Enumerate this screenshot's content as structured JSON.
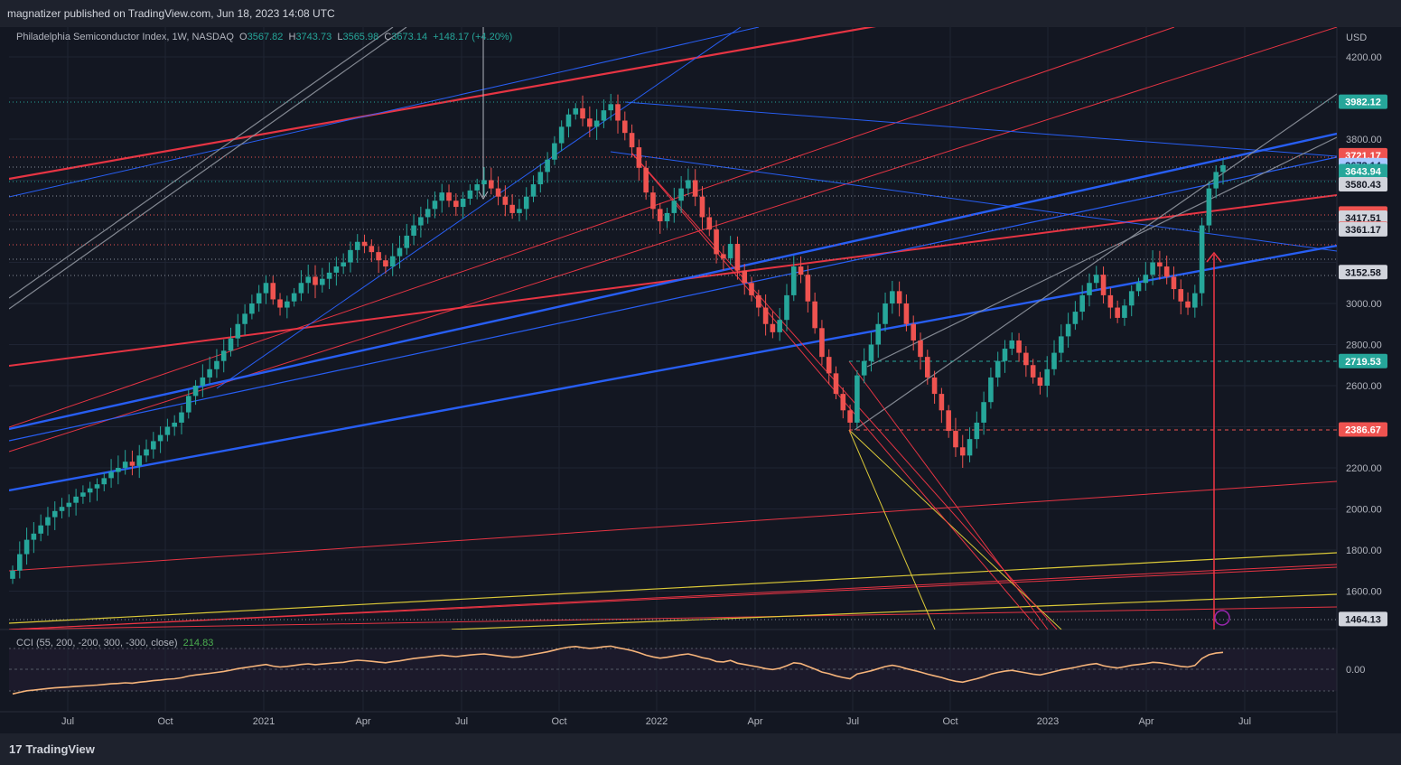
{
  "header": {
    "publisher_line": "magnatizer published on TradingView.com, Jun 18, 2023 14:08 UTC"
  },
  "legend": {
    "symbol": "Philadelphia Semiconductor Index, 1W, NASDAQ",
    "o_label": "O",
    "o": "3567.82",
    "h_label": "H",
    "h": "3743.73",
    "l_label": "L",
    "l": "3565.98",
    "c_label": "C",
    "c": "3673.14",
    "change": "+148.17 (+4.20%)"
  },
  "cci_legend": {
    "label": "CCI (55, 200, -200, 300, -300, close)",
    "value": "214.83"
  },
  "footer": {
    "brand": "TradingView"
  },
  "colors": {
    "background": "#131722",
    "grid": "#1f2433",
    "up": "#26a69a",
    "down": "#ef5350",
    "blue_line": "#2962ff",
    "red_line": "#f23645",
    "yellow_line": "#e6d33a",
    "cci_line": "#f5b37a"
  },
  "chart_data": {
    "type": "candlestick",
    "symbol": "Philadelphia Semiconductor Index",
    "interval": "1W",
    "currency_label": "USD",
    "y_ticks": [
      1600,
      1800,
      2000,
      2200,
      2400,
      2600,
      2800,
      3000,
      3200,
      3400,
      3600,
      3800,
      4000,
      4200
    ],
    "y_tick_labels": [
      "1600.00",
      "1800.00",
      "2000.00",
      "2200.00",
      "",
      "2600.00",
      "2800.00",
      "3000.00",
      "",
      "",
      "",
      "3800.00",
      "",
      "4200.00"
    ],
    "x_tick_labels": [
      "Jul",
      "Oct",
      "2021",
      "Apr",
      "Jul",
      "Oct",
      "2022",
      "Apr",
      "Jul",
      "Oct",
      "2023",
      "Apr",
      "Jul"
    ],
    "price_markers": [
      {
        "value": "3982.12",
        "bg": "#26a69a",
        "fg": "#ffffff"
      },
      {
        "value": "3721.17",
        "bg": "#ef5350",
        "fg": "#ffffff"
      },
      {
        "value": "3673.14",
        "bg": "#a8c7ff",
        "fg": "#0b1f4a"
      },
      {
        "value": "3643.94",
        "bg": "#26a69a",
        "fg": "#ffffff"
      },
      {
        "value": "3580.43",
        "bg": "#d1d4dc",
        "fg": "#131722"
      },
      {
        "value": "3437.89",
        "bg": "#ef5350",
        "fg": "#ffffff"
      },
      {
        "value": "3417.51",
        "bg": "#d1d4dc",
        "fg": "#131722"
      },
      {
        "value": "3363.62",
        "bg": "#ef5350",
        "fg": "#ffffff"
      },
      {
        "value": "3361.17",
        "bg": "#d1d4dc",
        "fg": "#131722"
      },
      {
        "value": "3152.58",
        "bg": "#d1d4dc",
        "fg": "#131722"
      },
      {
        "value": "2719.53",
        "bg": "#26a69a",
        "fg": "#ffffff"
      },
      {
        "value": "2386.67",
        "bg": "#ef5350",
        "fg": "#ffffff"
      },
      {
        "value": "1464.13",
        "bg": "#d1d4dc",
        "fg": "#131722"
      }
    ],
    "cci_ticks": [
      "0.00"
    ],
    "weekly_close_approx": [
      1700,
      1780,
      1850,
      1880,
      1920,
      1960,
      1990,
      2010,
      2030,
      2060,
      2080,
      2100,
      2120,
      2150,
      2180,
      2200,
      2230,
      2210,
      2260,
      2290,
      2330,
      2360,
      2400,
      2420,
      2470,
      2550,
      2600,
      2640,
      2680,
      2720,
      2770,
      2830,
      2900,
      2950,
      3000,
      3050,
      3100,
      3020,
      2980,
      3010,
      3050,
      3100,
      3130,
      3090,
      3120,
      3150,
      3180,
      3200,
      3260,
      3300,
      3280,
      3250,
      3210,
      3180,
      3230,
      3270,
      3330,
      3380,
      3420,
      3460,
      3500,
      3540,
      3500,
      3470,
      3510,
      3550,
      3580,
      3600,
      3560,
      3520,
      3480,
      3440,
      3460,
      3520,
      3580,
      3640,
      3700,
      3780,
      3860,
      3920,
      3950,
      3900,
      3860,
      3890,
      3940,
      3970,
      3890,
      3830,
      3760,
      3660,
      3540,
      3460,
      3400,
      3440,
      3500,
      3560,
      3600,
      3520,
      3420,
      3360,
      3240,
      3220,
      3290,
      3160,
      3100,
      3040,
      2980,
      2900,
      2860,
      2920,
      3040,
      3180,
      3140,
      3010,
      2880,
      2740,
      2660,
      2560,
      2480,
      2420,
      2650,
      2720,
      2800,
      2900,
      3000,
      3060,
      3000,
      2900,
      2820,
      2740,
      2640,
      2560,
      2480,
      2380,
      2300,
      2260,
      2340,
      2420,
      2520,
      2640,
      2720,
      2780,
      2820,
      2760,
      2700,
      2640,
      2600,
      2680,
      2760,
      2840,
      2900,
      2960,
      3040,
      3100,
      3140,
      3040,
      2980,
      2930,
      2990,
      3060,
      3100,
      3140,
      3200,
      3180,
      3130,
      3070,
      3010,
      2980,
      3050,
      3380,
      3560,
      3640,
      3673
    ]
  }
}
